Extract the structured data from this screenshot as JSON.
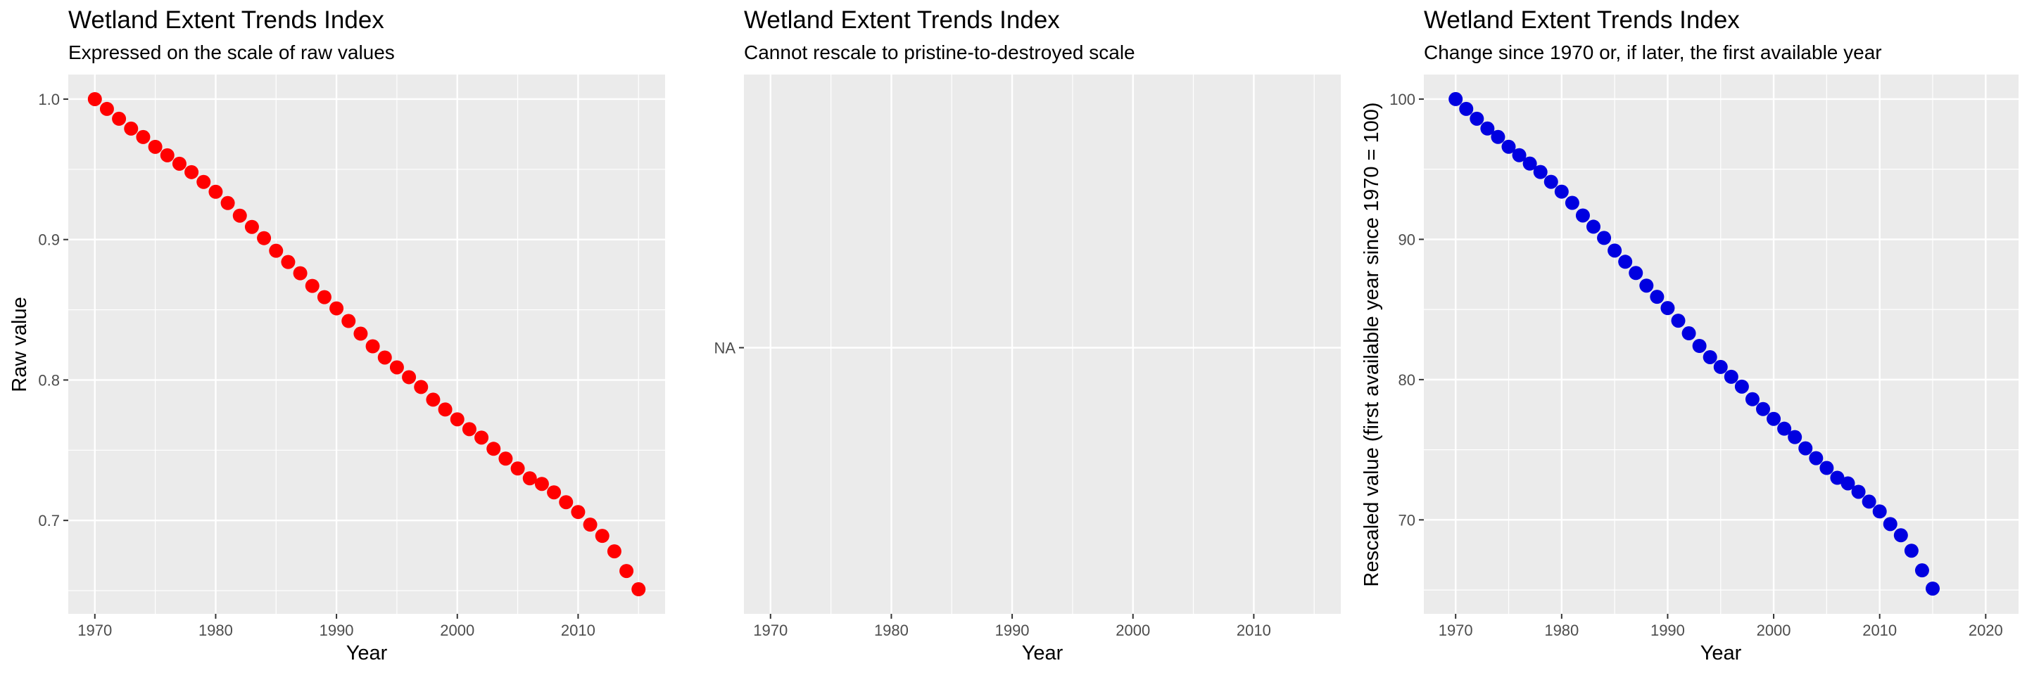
{
  "chart_data": [
    {
      "type": "scatter",
      "title": "Wetland Extent Trends Index",
      "subtitle": "Expressed on the scale of raw values",
      "xlabel": "Year",
      "ylabel": "Raw value",
      "xlim": [
        1967.8,
        2017.2
      ],
      "ylim": [
        0.6335,
        1.0175
      ],
      "x_ticks": [
        "1970",
        "1980",
        "1990",
        "2000",
        "2010"
      ],
      "y_ticks": [
        "0.7",
        "0.8",
        "0.9",
        "1.0"
      ],
      "x_tick_values": [
        1970,
        1980,
        1990,
        2000,
        2010
      ],
      "y_tick_values": [
        0.7,
        0.8,
        0.9,
        1.0
      ],
      "point_color": "#ff0000",
      "grid": true,
      "legend": "none",
      "x": [
        1970,
        1971,
        1972,
        1973,
        1974,
        1975,
        1976,
        1977,
        1978,
        1979,
        1980,
        1981,
        1982,
        1983,
        1984,
        1985,
        1986,
        1987,
        1988,
        1989,
        1990,
        1991,
        1992,
        1993,
        1994,
        1995,
        1996,
        1997,
        1998,
        1999,
        2000,
        2001,
        2002,
        2003,
        2004,
        2005,
        2006,
        2007,
        2008,
        2009,
        2010,
        2011,
        2012,
        2013,
        2014,
        2015
      ],
      "y": [
        1.0,
        0.993,
        0.986,
        0.979,
        0.973,
        0.966,
        0.96,
        0.954,
        0.948,
        0.941,
        0.934,
        0.926,
        0.917,
        0.909,
        0.901,
        0.892,
        0.884,
        0.876,
        0.867,
        0.859,
        0.851,
        0.842,
        0.833,
        0.824,
        0.816,
        0.809,
        0.802,
        0.795,
        0.786,
        0.779,
        0.772,
        0.765,
        0.759,
        0.751,
        0.744,
        0.737,
        0.73,
        0.726,
        0.72,
        0.713,
        0.706,
        0.697,
        0.689,
        0.678,
        0.664,
        0.651
      ]
    },
    {
      "type": "scatter",
      "title": "Wetland Extent Trends Index",
      "subtitle": "Cannot rescale to pristine-to-destroyed scale",
      "xlabel": "Year",
      "ylabel": "",
      "xlim": [
        1967.8,
        2017.2
      ],
      "x_ticks": [
        "1970",
        "1980",
        "1990",
        "2000",
        "2010"
      ],
      "x_tick_values": [
        1970,
        1980,
        1990,
        2000,
        2010
      ],
      "y_ticks": [
        "NA"
      ],
      "grid": true,
      "legend": "none",
      "x": [],
      "y": []
    },
    {
      "type": "scatter",
      "title": "Wetland Extent Trends Index",
      "subtitle": "Change since 1970 or, if later, the first available year",
      "xlabel": "Year",
      "ylabel": "Rescaled value (first available year since 1970 = 100)",
      "xlim": [
        1967.0,
        2023.1
      ],
      "ylim": [
        63.3,
        101.75
      ],
      "x_ticks": [
        "1970",
        "1980",
        "1990",
        "2000",
        "2010",
        "2020"
      ],
      "y_ticks": [
        "70",
        "80",
        "90",
        "100"
      ],
      "x_tick_values": [
        1970,
        1980,
        1990,
        2000,
        2010,
        2020
      ],
      "y_tick_values": [
        70,
        80,
        90,
        100
      ],
      "point_color": "#0000e0",
      "grid": true,
      "legend": "none",
      "x": [
        1970,
        1971,
        1972,
        1973,
        1974,
        1975,
        1976,
        1977,
        1978,
        1979,
        1980,
        1981,
        1982,
        1983,
        1984,
        1985,
        1986,
        1987,
        1988,
        1989,
        1990,
        1991,
        1992,
        1993,
        1994,
        1995,
        1996,
        1997,
        1998,
        1999,
        2000,
        2001,
        2002,
        2003,
        2004,
        2005,
        2006,
        2007,
        2008,
        2009,
        2010,
        2011,
        2012,
        2013,
        2014,
        2015
      ],
      "y": [
        100.0,
        99.3,
        98.6,
        97.9,
        97.3,
        96.6,
        96.0,
        95.4,
        94.8,
        94.1,
        93.4,
        92.6,
        91.7,
        90.9,
        90.1,
        89.2,
        88.4,
        87.6,
        86.7,
        85.9,
        85.1,
        84.2,
        83.3,
        82.4,
        81.6,
        80.9,
        80.2,
        79.5,
        78.6,
        77.9,
        77.2,
        76.5,
        75.9,
        75.1,
        74.4,
        73.7,
        73.0,
        72.6,
        72.0,
        71.3,
        70.6,
        69.7,
        68.9,
        67.8,
        66.4,
        65.1
      ]
    }
  ]
}
